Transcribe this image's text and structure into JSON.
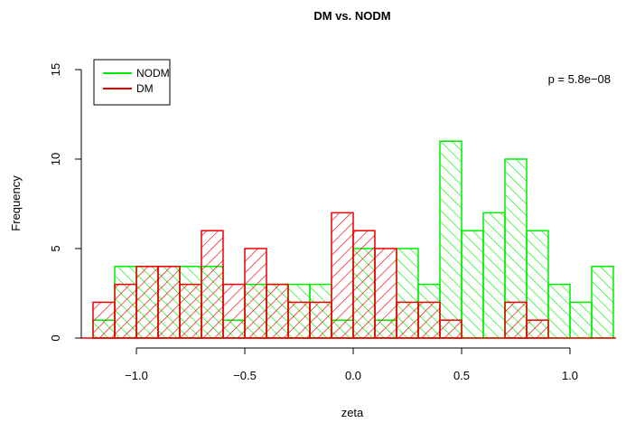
{
  "chart_data": {
    "type": "bar",
    "title": "DM vs. NODM",
    "xlabel": "zeta",
    "ylabel": "Frequency",
    "xlim": [
      -1.2,
      1.2
    ],
    "ylim": [
      0,
      15
    ],
    "x_ticks": [
      -1.0,
      -0.5,
      0.0,
      0.5,
      1.0
    ],
    "x_tick_labels": [
      "−1.0",
      "−0.5",
      "0.0",
      "0.5",
      "1.0"
    ],
    "y_ticks": [
      0,
      5,
      10,
      15
    ],
    "y_tick_labels": [
      "0",
      "5",
      "10",
      "15"
    ],
    "grid": false,
    "legend_position": "top-left",
    "annotation": "p = 5.8e−08",
    "bin_width": 0.1,
    "series": [
      {
        "name": "NODM",
        "color": "#00ee00",
        "hatch": "falling-diagonal",
        "bin_starts": [
          -1.2,
          -1.1,
          -1.0,
          -0.9,
          -0.8,
          -0.7,
          -0.6,
          -0.5,
          -0.4,
          -0.3,
          -0.2,
          -0.1,
          0.0,
          0.1,
          0.2,
          0.3,
          0.4,
          0.5,
          0.6,
          0.7,
          0.8,
          0.9,
          1.0,
          1.1
        ],
        "values": [
          1,
          4,
          4,
          4,
          4,
          4,
          1,
          3,
          3,
          3,
          3,
          1,
          5,
          1,
          5,
          3,
          11,
          6,
          7,
          10,
          6,
          3,
          2,
          4
        ]
      },
      {
        "name": "DM",
        "color": "#ee0000",
        "hatch": "rising-diagonal",
        "bin_starts": [
          -1.2,
          -1.1,
          -1.0,
          -0.9,
          -0.8,
          -0.7,
          -0.6,
          -0.5,
          -0.4,
          -0.3,
          -0.2,
          -0.1,
          0.0,
          0.1,
          0.2,
          0.3,
          0.4,
          0.5,
          0.6,
          0.7,
          0.8
        ],
        "values": [
          2,
          3,
          4,
          4,
          3,
          6,
          3,
          5,
          3,
          2,
          2,
          7,
          6,
          5,
          2,
          2,
          1,
          0,
          0,
          2,
          1
        ]
      }
    ]
  }
}
